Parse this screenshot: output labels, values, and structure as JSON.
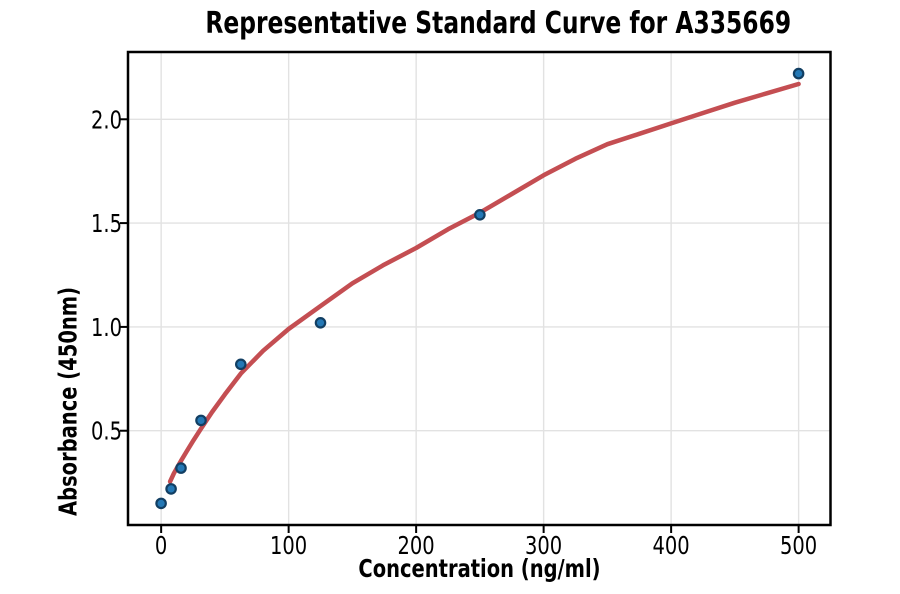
{
  "chart_data": {
    "type": "scatter",
    "title": "Representative Standard Curve for A335669",
    "xlabel": "Concentration (ng/ml)",
    "ylabel": "Absorbance (450nm)",
    "xlim": [
      -26,
      525
    ],
    "ylim": [
      0.046,
      2.324
    ],
    "grid": true,
    "legend": "none",
    "background": "#ffffff",
    "xticks": {
      "values": [
        0,
        100,
        200,
        300,
        400,
        500
      ],
      "labels": [
        "0",
        "100",
        "200",
        "300",
        "400",
        "500"
      ]
    },
    "yticks": {
      "values": [
        0.5,
        1.0,
        1.5,
        2.0
      ],
      "labels": [
        "0.5",
        "1.0",
        "1.5",
        "2.0"
      ]
    },
    "series": [
      {
        "name": "standards",
        "kind": "scatter",
        "marker": "circle",
        "fill": "#2478b5",
        "edge": "#123f63",
        "points": [
          {
            "x": 0,
            "y": 0.15
          },
          {
            "x": 7.8,
            "y": 0.22
          },
          {
            "x": 15.6,
            "y": 0.32
          },
          {
            "x": 31.25,
            "y": 0.55
          },
          {
            "x": 62.5,
            "y": 0.82
          },
          {
            "x": 125,
            "y": 1.02
          },
          {
            "x": 250,
            "y": 1.54
          },
          {
            "x": 500,
            "y": 2.22
          }
        ]
      },
      {
        "name": "fitted-curve",
        "kind": "line",
        "color": "#c44e52",
        "points": [
          [
            7,
            0.255
          ],
          [
            10,
            0.295
          ],
          [
            15.6,
            0.355
          ],
          [
            20,
            0.4
          ],
          [
            25,
            0.45
          ],
          [
            31.25,
            0.51
          ],
          [
            40,
            0.59
          ],
          [
            50,
            0.675
          ],
          [
            62.5,
            0.775
          ],
          [
            80,
            0.885
          ],
          [
            100,
            0.99
          ],
          [
            125,
            1.1
          ],
          [
            150,
            1.21
          ],
          [
            175,
            1.3
          ],
          [
            200,
            1.38
          ],
          [
            225,
            1.47
          ],
          [
            250,
            1.55
          ],
          [
            275,
            1.64
          ],
          [
            300,
            1.73
          ],
          [
            325,
            1.81
          ],
          [
            350,
            1.88
          ],
          [
            375,
            1.93
          ],
          [
            400,
            1.98
          ],
          [
            425,
            2.03
          ],
          [
            450,
            2.08
          ],
          [
            475,
            2.125
          ],
          [
            500,
            2.17
          ]
        ]
      }
    ],
    "style": {
      "grid_color": "#e2e2e2",
      "spine_color": "#000000",
      "tick_color": "#000000",
      "text_color": "#000000"
    }
  }
}
